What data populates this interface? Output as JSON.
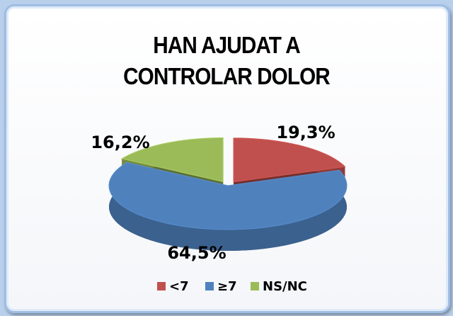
{
  "chart_data": {
    "type": "pie3d",
    "title": "HAN AJUDAT A CONTROLAR DOLOR",
    "categories": [
      "<7",
      "≥7",
      "NS/NC"
    ],
    "values": [
      19.3,
      64.5,
      16.2
    ],
    "value_labels": [
      "19,3%",
      "64,5%",
      "16,2%"
    ],
    "colors": [
      "#c0504d",
      "#4f81bd",
      "#9bbb59"
    ],
    "legend": "bottom"
  }
}
